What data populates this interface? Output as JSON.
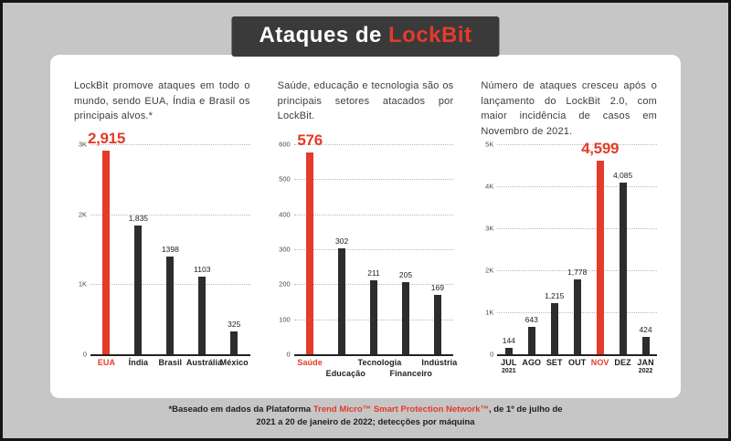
{
  "colors": {
    "accent": "#e43b2a",
    "bar_dark": "#2d2d2d"
  },
  "header": {
    "title_prefix": "Ataques de ",
    "title_accent": "LockBit"
  },
  "chart_data": [
    {
      "type": "bar",
      "description": "LockBit promove ataques em todo o mundo, sendo EUA, Índia e Brasil os principais alvos.*",
      "categories": [
        "EUA",
        "Índia",
        "Brasil",
        "Austrália",
        "México"
      ],
      "values": [
        2915,
        1835,
        1398,
        1103,
        325
      ],
      "value_labels": [
        "2,915",
        "1,835",
        "1398",
        "1103",
        "325"
      ],
      "highlight_index": 0,
      "ylim": [
        0,
        3000
      ],
      "yticks": [
        {
          "label": "3K",
          "value": 3000
        },
        {
          "label": "2K",
          "value": 2000
        },
        {
          "label": "1K",
          "value": 1000
        },
        {
          "label": "0",
          "value": 0
        }
      ],
      "grid": "dotted-horizontal",
      "legend": "none"
    },
    {
      "type": "bar",
      "description": "Saúde, educação e tecnologia são os principais setores atacados por LockBit.",
      "categories": [
        "Saúde",
        "Educação",
        "Tecnologia",
        "Financeiro",
        "Indústria"
      ],
      "values": [
        576,
        302,
        211,
        205,
        169
      ],
      "value_labels": [
        "576",
        "302",
        "211",
        "205",
        "169"
      ],
      "highlight_index": 0,
      "stagger_xlabels": true,
      "ylim": [
        0,
        600
      ],
      "yticks": [
        {
          "label": "600",
          "value": 600
        },
        {
          "label": "500",
          "value": 500
        },
        {
          "label": "400",
          "value": 400
        },
        {
          "label": "300",
          "value": 300
        },
        {
          "label": "200",
          "value": 200
        },
        {
          "label": "100",
          "value": 100
        },
        {
          "label": "0",
          "value": 0
        }
      ],
      "grid": "dotted-horizontal",
      "legend": "none"
    },
    {
      "type": "bar",
      "description": "Número de ataques cresceu após o lançamento do LockBit 2.0, com maior incidência de casos em Novembro de 2021.",
      "categories": [
        "JUL",
        "AGO",
        "SET",
        "OUT",
        "NOV",
        "DEZ",
        "JAN"
      ],
      "category_subs": [
        "2021",
        "",
        "",
        "",
        "",
        "",
        "2022"
      ],
      "values": [
        144,
        643,
        1215,
        1778,
        4599,
        4085,
        424
      ],
      "value_labels": [
        "144",
        "643",
        "1,215",
        "1,778",
        "4,599",
        "4,085",
        "424"
      ],
      "highlight_index": 4,
      "ylim": [
        0,
        5000
      ],
      "yticks": [
        {
          "label": "5K",
          "value": 5000
        },
        {
          "label": "4K",
          "value": 4000
        },
        {
          "label": "3K",
          "value": 3000
        },
        {
          "label": "2K",
          "value": 2000
        },
        {
          "label": "1K",
          "value": 1000
        },
        {
          "label": "0",
          "value": 0
        }
      ],
      "grid": "dotted-horizontal",
      "legend": "none"
    }
  ],
  "footer": {
    "line1_pre": "*Baseado em dados da Plataforma ",
    "line1_brand": "Trend Micro™ Smart Protection Network™",
    "line1_post": ", de 1º de julho de",
    "line2": "2021 a 20 de janeiro de 2022; detecções por máquina"
  }
}
